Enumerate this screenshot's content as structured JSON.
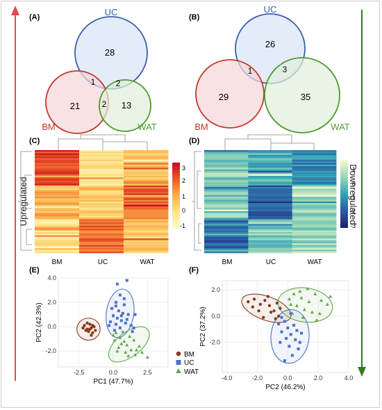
{
  "side_labels": {
    "left": "Upregulated",
    "right": "Downregulated"
  },
  "colors": {
    "up_arrow": "#e04a4a",
    "down_arrow": "#2e7d1f",
    "BM": "#c0392b",
    "UC": "#3a5fa8",
    "WAT": "#4e9a2e",
    "BM_point": "#8b3a1a",
    "UC_point": "#4a72c8",
    "WAT_point": "#62a84a",
    "ellipse_BM": "#8b3a1a",
    "ellipse_UC": "#4a72c8",
    "ellipse_WAT": "#62a84a"
  },
  "chart_data": [
    {
      "panel": "(A)",
      "type": "venn",
      "sets": [
        "UC",
        "BM",
        "WAT"
      ],
      "regions": {
        "UC_only": 28,
        "BM_only": 21,
        "WAT_only": 13,
        "UC_BM": 1,
        "UC_WAT": 2,
        "BM_WAT": 2,
        "all": null
      }
    },
    {
      "panel": "(B)",
      "type": "venn",
      "sets": [
        "UC",
        "BM",
        "WAT"
      ],
      "regions": {
        "UC_only": 26,
        "BM_only": 29,
        "WAT_only": 35,
        "UC_BM": 1,
        "UC_WAT": 3,
        "BM_WAT": null,
        "all": null
      }
    },
    {
      "panel": "(C)",
      "type": "heatmap",
      "columns": [
        "BM",
        "UC",
        "WAT"
      ],
      "colorbar": {
        "ticks": [
          "3",
          "2",
          "1",
          "0",
          "-1"
        ],
        "range": [
          -2,
          3.5
        ],
        "palette": "yellow-orange-red"
      },
      "column_means": {
        "BM": [
          2.6,
          0.5,
          -0.6
        ],
        "UC": [
          -0.8,
          0.1,
          1.9
        ],
        "WAT": [
          0.4,
          2.0,
          0.3
        ]
      }
    },
    {
      "panel": "(D)",
      "type": "heatmap",
      "columns": [
        "BM",
        "UC",
        "WAT"
      ],
      "colorbar": {
        "ticks": [
          "1",
          "0",
          "-1",
          "-2",
          "-3"
        ],
        "range": [
          -3.5,
          1.8
        ],
        "palette": "yellow-green-blue"
      },
      "column_means": {
        "BM": [
          0.2,
          0.1,
          -2.0
        ],
        "UC": [
          -0.6,
          -1.9,
          0.2
        ],
        "WAT": [
          -1.4,
          0.4,
          0.5
        ]
      }
    },
    {
      "panel": "(E)",
      "type": "scatter",
      "xlabel": "PC1 (47.7%)",
      "ylabel": "PC2 (42.3%)",
      "xlim": [
        -4,
        4
      ],
      "ylim": [
        -3.3,
        4.0
      ],
      "xticks": [
        "-2.5",
        "0.0",
        "2.5"
      ],
      "xtick_values": [
        -2.5,
        0,
        2.5
      ],
      "yticks": [
        "4.0",
        "2.0",
        "0.0",
        "-2.0"
      ],
      "ytick_values": [
        4,
        2,
        0,
        -2
      ],
      "grid": true,
      "series": [
        {
          "name": "BM",
          "marker": "circle",
          "points": [
            [
              -2.1,
              0.1
            ],
            [
              -1.9,
              -0.2
            ],
            [
              -1.7,
              0.2
            ],
            [
              -1.6,
              -0.1
            ],
            [
              -1.8,
              -0.4
            ],
            [
              -1.5,
              -0.5
            ],
            [
              -2.0,
              -0.3
            ],
            [
              -1.4,
              0.0
            ],
            [
              -1.3,
              -0.3
            ],
            [
              -2.2,
              -0.1
            ],
            [
              -1.6,
              -0.7
            ],
            [
              -1.9,
              0.3
            ],
            [
              -1.7,
              -0.2
            ],
            [
              -1.5,
              0.1
            ]
          ],
          "ellipse": {
            "cx": -1.8,
            "cy": -0.2,
            "rx": 0.85,
            "ry": 0.9,
            "angle": 0
          }
        },
        {
          "name": "UC",
          "marker": "square",
          "points": [
            [
              0.3,
              3.5
            ],
            [
              1.0,
              3.8
            ],
            [
              0.5,
              2.6
            ],
            [
              0.2,
              2.0
            ],
            [
              0.8,
              1.8
            ],
            [
              -0.1,
              1.5
            ],
            [
              0.4,
              1.3
            ],
            [
              0.7,
              1.1
            ],
            [
              1.1,
              1.0
            ],
            [
              0.0,
              0.9
            ],
            [
              0.3,
              0.7
            ],
            [
              0.6,
              0.5
            ],
            [
              -0.2,
              0.4
            ],
            [
              0.9,
              0.3
            ],
            [
              0.2,
              0.2
            ],
            [
              1.3,
              0.1
            ],
            [
              0.5,
              -0.1
            ],
            [
              0.1,
              -0.3
            ],
            [
              1.6,
              1.0
            ],
            [
              1.4,
              -0.4
            ],
            [
              0.8,
              2.3
            ],
            [
              0.2,
              1.7
            ],
            [
              0.6,
              0.9
            ],
            [
              1.0,
              0.6
            ],
            [
              -0.3,
              0.1
            ],
            [
              1.5,
              -0.1
            ]
          ],
          "ellipse": {
            "cx": 0.5,
            "cy": 1.1,
            "rx": 1.0,
            "ry": 2.0,
            "angle": -8
          }
        },
        {
          "name": "WAT",
          "marker": "triangle",
          "points": [
            [
              0.2,
              -0.5
            ],
            [
              0.5,
              -0.9
            ],
            [
              0.8,
              -1.2
            ],
            [
              1.0,
              -1.5
            ],
            [
              0.4,
              -1.7
            ],
            [
              1.3,
              -1.9
            ],
            [
              0.9,
              -2.1
            ],
            [
              1.6,
              -2.3
            ],
            [
              0.1,
              -1.1
            ],
            [
              0.7,
              -0.4
            ],
            [
              1.2,
              -0.8
            ],
            [
              1.9,
              -1.6
            ],
            [
              0.3,
              -2.0
            ],
            [
              1.5,
              -1.1
            ],
            [
              2.1,
              -2.1
            ],
            [
              0.6,
              -1.4
            ],
            [
              2.5,
              -2.5
            ],
            [
              1.1,
              -2.4
            ],
            [
              0.0,
              -0.7
            ],
            [
              1.7,
              -1.9
            ]
          ],
          "ellipse": {
            "cx": 1.15,
            "cy": -1.45,
            "rx": 1.75,
            "ry": 1.0,
            "angle": 38
          }
        }
      ]
    },
    {
      "panel": "(F)",
      "type": "scatter",
      "xlabel": "PC2 (46.2%)",
      "ylabel": "PC2 (37.2%)",
      "xlim": [
        -4.3,
        4.0
      ],
      "ylim": [
        -4.3,
        2.7
      ],
      "xticks": [
        "-4.0",
        "-2.0",
        "0.0",
        "2.0",
        "4.0"
      ],
      "xtick_values": [
        -4,
        -2,
        0,
        2,
        4
      ],
      "yticks": [
        "2.0",
        "0.0",
        "-2.0"
      ],
      "ytick_values": [
        2,
        0,
        -2
      ],
      "grid": true,
      "series": [
        {
          "name": "BM",
          "marker": "circle",
          "points": [
            [
              -2.6,
              1.1
            ],
            [
              -2.2,
              1.3
            ],
            [
              -1.8,
              0.9
            ],
            [
              -1.5,
              1.2
            ],
            [
              -1.2,
              0.8
            ],
            [
              -0.9,
              0.4
            ],
            [
              -0.7,
              1.0
            ],
            [
              -1.9,
              0.4
            ],
            [
              -1.1,
              0.3
            ],
            [
              -0.5,
              0.6
            ],
            [
              -2.3,
              0.7
            ],
            [
              -1.6,
              -0.1
            ],
            [
              -0.8,
              -0.2
            ],
            [
              -1.3,
              1.5
            ],
            [
              -0.6,
              0.0
            ]
          ],
          "ellipse": {
            "cx": -1.4,
            "cy": 0.6,
            "rx": 1.7,
            "ry": 0.9,
            "angle": -20
          }
        },
        {
          "name": "UC",
          "marker": "square",
          "points": [
            [
              -0.6,
              -0.6
            ],
            [
              -0.2,
              -0.4
            ],
            [
              0.0,
              -0.9
            ],
            [
              0.4,
              -0.7
            ],
            [
              -0.4,
              -1.2
            ],
            [
              0.2,
              -1.4
            ],
            [
              0.6,
              -1.1
            ],
            [
              -0.1,
              -1.7
            ],
            [
              0.5,
              -1.8
            ],
            [
              0.9,
              -1.3
            ],
            [
              -0.5,
              -2.0
            ],
            [
              0.1,
              -2.3
            ],
            [
              0.7,
              -2.5
            ],
            [
              0.3,
              -3.0
            ],
            [
              -0.2,
              -3.4
            ],
            [
              0.8,
              -2.0
            ],
            [
              -0.4,
              -0.1
            ],
            [
              0.2,
              0.2
            ]
          ],
          "ellipse": {
            "cx": 0.15,
            "cy": -1.55,
            "rx": 1.25,
            "ry": 2.05,
            "angle": -5
          }
        },
        {
          "name": "WAT",
          "marker": "triangle",
          "points": [
            [
              0.1,
              1.3
            ],
            [
              0.4,
              1.7
            ],
            [
              0.9,
              1.4
            ],
            [
              1.4,
              1.1
            ],
            [
              1.8,
              1.7
            ],
            [
              2.2,
              1.2
            ],
            [
              0.6,
              0.8
            ],
            [
              1.1,
              0.5
            ],
            [
              2.6,
              0.9
            ],
            [
              1.6,
              0.3
            ],
            [
              0.3,
              0.2
            ],
            [
              2.1,
              0.2
            ],
            [
              0.8,
              1.9
            ],
            [
              1.3,
              2.1
            ],
            [
              2.8,
              1.5
            ],
            [
              0.2,
              0.9
            ],
            [
              1.9,
              -0.3
            ],
            [
              1.0,
              -0.1
            ]
          ],
          "ellipse": {
            "cx": 1.15,
            "cy": 0.85,
            "rx": 1.8,
            "ry": 1.3,
            "angle": -8
          }
        }
      ]
    }
  ],
  "legend": {
    "items": [
      {
        "name": "BM",
        "marker": "circle"
      },
      {
        "name": "UC",
        "marker": "square"
      },
      {
        "name": "WAT",
        "marker": "triangle"
      }
    ]
  }
}
